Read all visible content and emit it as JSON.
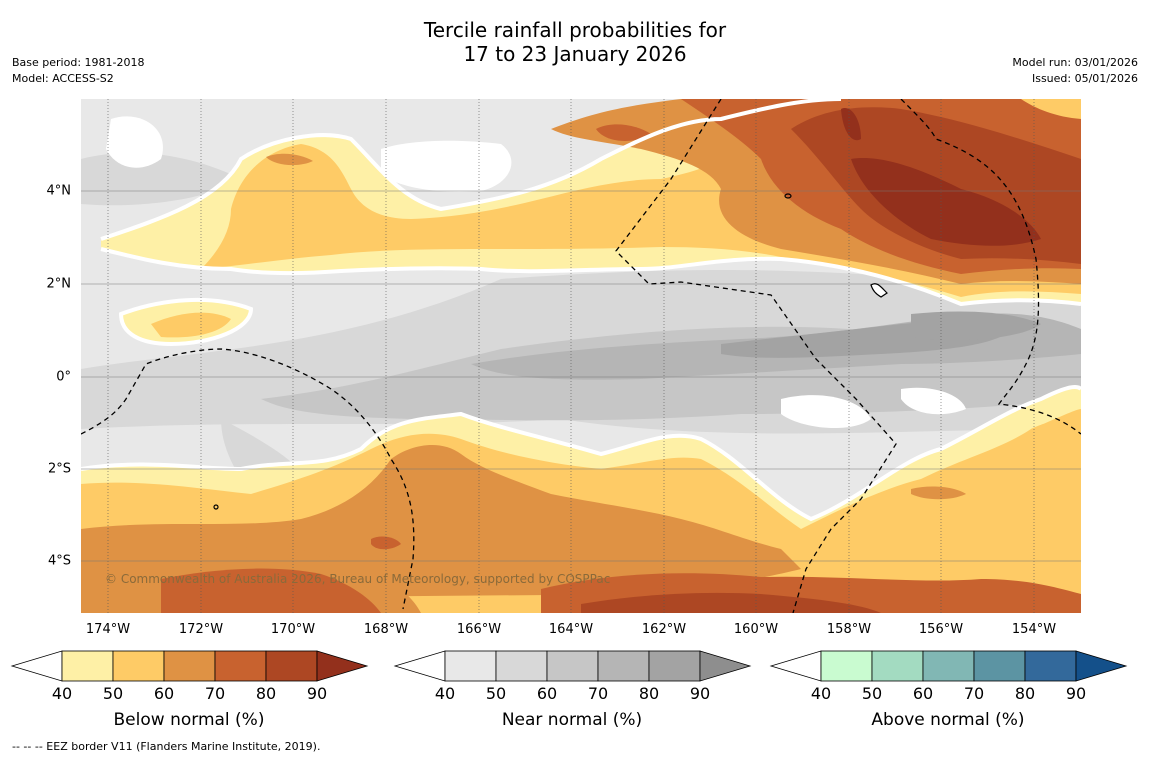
{
  "title": {
    "line1": "Tercile rainfall probabilities for",
    "line2": "17 to 23 January 2026"
  },
  "meta": {
    "base_period": "Base period: 1981-2018",
    "model": "Model: ACCESS-S2",
    "model_run": "Model run: 03/01/2026",
    "issued": "Issued: 05/01/2026"
  },
  "map": {
    "copyright": "© Commonwealth of Australia 2026, Bureau of Meteorology, supported by COSPPac",
    "x_ticks": [
      "174°W",
      "172°W",
      "170°W",
      "168°W",
      "166°W",
      "164°W",
      "162°W",
      "160°W",
      "158°W",
      "156°W",
      "154°W"
    ],
    "y_ticks": [
      "4°N",
      "2°N",
      "0°",
      "2°S",
      "4°S"
    ]
  },
  "colorbars": [
    {
      "label": "Below normal (%)",
      "ticks": [
        "40",
        "50",
        "60",
        "70",
        "80",
        "90"
      ],
      "colors": [
        "#fef0a6",
        "#fecb66",
        "#df9244",
        "#c8622f",
        "#ad4723",
        "#93301c"
      ]
    },
    {
      "label": "Near normal (%)",
      "ticks": [
        "40",
        "50",
        "60",
        "70",
        "80",
        "90"
      ],
      "colors": [
        "#e8e8e8",
        "#d8d8d8",
        "#c6c6c6",
        "#b5b5b5",
        "#a3a3a3",
        "#8e8e8e"
      ]
    },
    {
      "label": "Above normal (%)",
      "ticks": [
        "40",
        "50",
        "60",
        "70",
        "80",
        "90"
      ],
      "colors": [
        "#c9fbd0",
        "#a3dbc1",
        "#81b7b4",
        "#5c94a3",
        "#33699b",
        "#14508a"
      ]
    }
  ],
  "footnote": "--  --  -- EEZ border V11 (Flanders Marine Institute, 2019)."
}
